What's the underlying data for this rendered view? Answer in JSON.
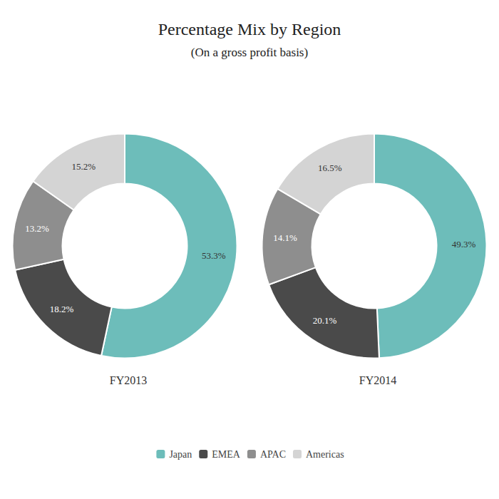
{
  "chart_data": [
    {
      "type": "pie",
      "title": "Percentage Mix by Region",
      "subtitle": "(On a gross profit basis)",
      "annotations": [
        "FY2013"
      ],
      "categories": [
        "Japan",
        "EMEA",
        "APAC",
        "Americas"
      ],
      "values": [
        53.3,
        18.2,
        13.2,
        15.2
      ],
      "value_labels": [
        "53.3%",
        "18.2%",
        "13.2%",
        "15.2%"
      ],
      "colors": [
        "#6dbdba",
        "#4a4a4a",
        "#8e8e8e",
        "#d4d4d4"
      ],
      "data_labels": true,
      "legend": "bottom"
    },
    {
      "type": "pie",
      "annotations": [
        "FY2014"
      ],
      "categories": [
        "Japan",
        "EMEA",
        "APAC",
        "Americas"
      ],
      "values": [
        49.3,
        20.1,
        14.1,
        16.5
      ],
      "value_labels": [
        "49.3%",
        "20.1%",
        "14.1%",
        "16.5%"
      ],
      "colors": [
        "#6dbdba",
        "#4a4a4a",
        "#8e8e8e",
        "#d4d4d4"
      ],
      "data_labels": true,
      "legend": "bottom"
    }
  ]
}
